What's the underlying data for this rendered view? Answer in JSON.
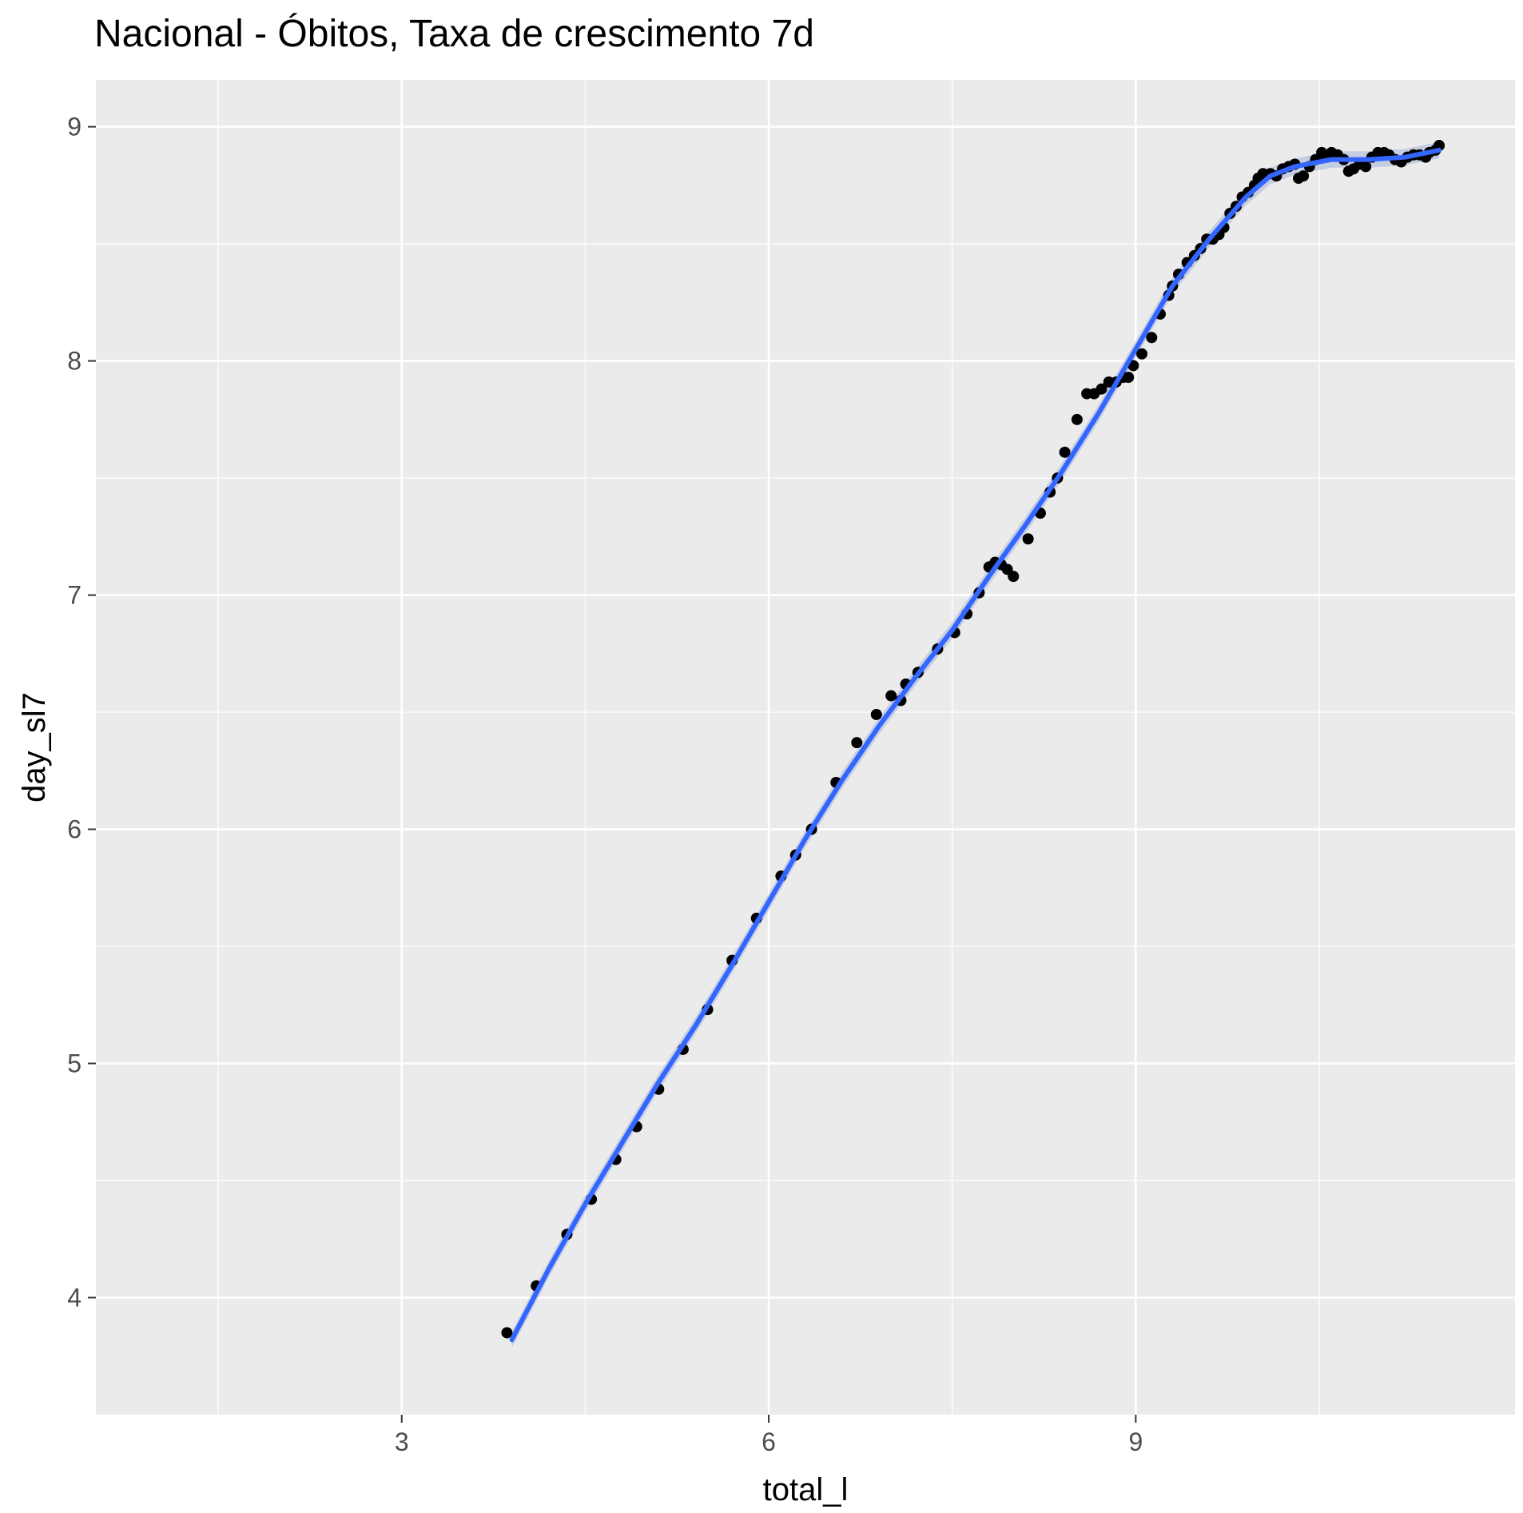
{
  "chart_data": {
    "type": "scatter",
    "title": "Nacional - Óbitos, Taxa de crescimento 7d",
    "xlabel": "total_l",
    "ylabel": "day_sl7",
    "xlim": [
      0.5,
      12.1
    ],
    "ylim": [
      3.5,
      9.2
    ],
    "x_ticks": [
      3,
      6,
      9
    ],
    "y_ticks": [
      4,
      5,
      6,
      7,
      8,
      9
    ],
    "grid": true,
    "legend": "none",
    "colors": {
      "panel": "#ebebeb",
      "grid": "#ffffff",
      "points": "#000000",
      "smooth": "#3366ff",
      "ribbon": "#a6b4d8"
    },
    "points": [
      [
        3.86,
        3.85
      ],
      [
        4.1,
        4.05
      ],
      [
        4.35,
        4.27
      ],
      [
        4.55,
        4.42
      ],
      [
        4.75,
        4.59
      ],
      [
        4.92,
        4.73
      ],
      [
        5.1,
        4.89
      ],
      [
        5.3,
        5.06
      ],
      [
        5.5,
        5.23
      ],
      [
        5.7,
        5.44
      ],
      [
        5.9,
        5.62
      ],
      [
        6.1,
        5.8
      ],
      [
        6.22,
        5.89
      ],
      [
        6.35,
        6.0
      ],
      [
        6.55,
        6.2
      ],
      [
        6.72,
        6.37
      ],
      [
        6.88,
        6.49
      ],
      [
        7.0,
        6.57
      ],
      [
        7.08,
        6.55
      ],
      [
        7.12,
        6.62
      ],
      [
        7.22,
        6.67
      ],
      [
        7.38,
        6.77
      ],
      [
        7.52,
        6.84
      ],
      [
        7.62,
        6.92
      ],
      [
        7.72,
        7.01
      ],
      [
        7.8,
        7.12
      ],
      [
        7.85,
        7.14
      ],
      [
        7.9,
        7.13
      ],
      [
        7.95,
        7.11
      ],
      [
        8.0,
        7.08
      ],
      [
        8.12,
        7.24
      ],
      [
        8.22,
        7.35
      ],
      [
        8.3,
        7.44
      ],
      [
        8.36,
        7.5
      ],
      [
        8.42,
        7.61
      ],
      [
        8.52,
        7.75
      ],
      [
        8.6,
        7.86
      ],
      [
        8.66,
        7.86
      ],
      [
        8.72,
        7.88
      ],
      [
        8.78,
        7.91
      ],
      [
        8.84,
        7.91
      ],
      [
        8.9,
        7.93
      ],
      [
        8.94,
        7.93
      ],
      [
        8.98,
        7.98
      ],
      [
        9.05,
        8.03
      ],
      [
        9.13,
        8.1
      ],
      [
        9.2,
        8.2
      ],
      [
        9.27,
        8.28
      ],
      [
        9.3,
        8.32
      ],
      [
        9.35,
        8.37
      ],
      [
        9.42,
        8.42
      ],
      [
        9.48,
        8.45
      ],
      [
        9.53,
        8.48
      ],
      [
        9.58,
        8.52
      ],
      [
        9.63,
        8.52
      ],
      [
        9.68,
        8.54
      ],
      [
        9.72,
        8.57
      ],
      [
        9.77,
        8.63
      ],
      [
        9.82,
        8.66
      ],
      [
        9.87,
        8.7
      ],
      [
        9.92,
        8.72
      ],
      [
        9.97,
        8.75
      ],
      [
        10.0,
        8.78
      ],
      [
        10.04,
        8.8
      ],
      [
        10.1,
        8.8
      ],
      [
        10.15,
        8.79
      ],
      [
        10.2,
        8.82
      ],
      [
        10.25,
        8.83
      ],
      [
        10.3,
        8.84
      ],
      [
        10.33,
        8.78
      ],
      [
        10.37,
        8.79
      ],
      [
        10.42,
        8.83
      ],
      [
        10.47,
        8.86
      ],
      [
        10.52,
        8.89
      ],
      [
        10.56,
        8.87
      ],
      [
        10.6,
        8.89
      ],
      [
        10.65,
        8.88
      ],
      [
        10.7,
        8.86
      ],
      [
        10.74,
        8.81
      ],
      [
        10.78,
        8.82
      ],
      [
        10.83,
        8.84
      ],
      [
        10.88,
        8.83
      ],
      [
        10.93,
        8.87
      ],
      [
        10.98,
        8.89
      ],
      [
        11.03,
        8.89
      ],
      [
        11.07,
        8.88
      ],
      [
        11.12,
        8.86
      ],
      [
        11.17,
        8.85
      ],
      [
        11.22,
        8.87
      ],
      [
        11.27,
        8.88
      ],
      [
        11.32,
        8.88
      ],
      [
        11.37,
        8.87
      ],
      [
        11.4,
        8.89
      ],
      [
        11.45,
        8.9
      ],
      [
        11.48,
        8.92
      ]
    ],
    "smooth": [
      [
        3.9,
        3.82
      ],
      [
        4.2,
        4.12
      ],
      [
        4.5,
        4.4
      ],
      [
        4.8,
        4.66
      ],
      [
        5.1,
        4.92
      ],
      [
        5.4,
        5.16
      ],
      [
        5.7,
        5.42
      ],
      [
        6.0,
        5.69
      ],
      [
        6.3,
        5.96
      ],
      [
        6.6,
        6.21
      ],
      [
        6.9,
        6.44
      ],
      [
        7.2,
        6.65
      ],
      [
        7.5,
        6.85
      ],
      [
        7.8,
        7.08
      ],
      [
        8.1,
        7.3
      ],
      [
        8.4,
        7.53
      ],
      [
        8.7,
        7.78
      ],
      [
        9.0,
        8.05
      ],
      [
        9.3,
        8.32
      ],
      [
        9.6,
        8.52
      ],
      [
        9.9,
        8.7
      ],
      [
        10.1,
        8.79
      ],
      [
        10.3,
        8.83
      ],
      [
        10.6,
        8.86
      ],
      [
        10.9,
        8.86
      ],
      [
        11.2,
        8.87
      ],
      [
        11.48,
        8.9
      ]
    ]
  }
}
